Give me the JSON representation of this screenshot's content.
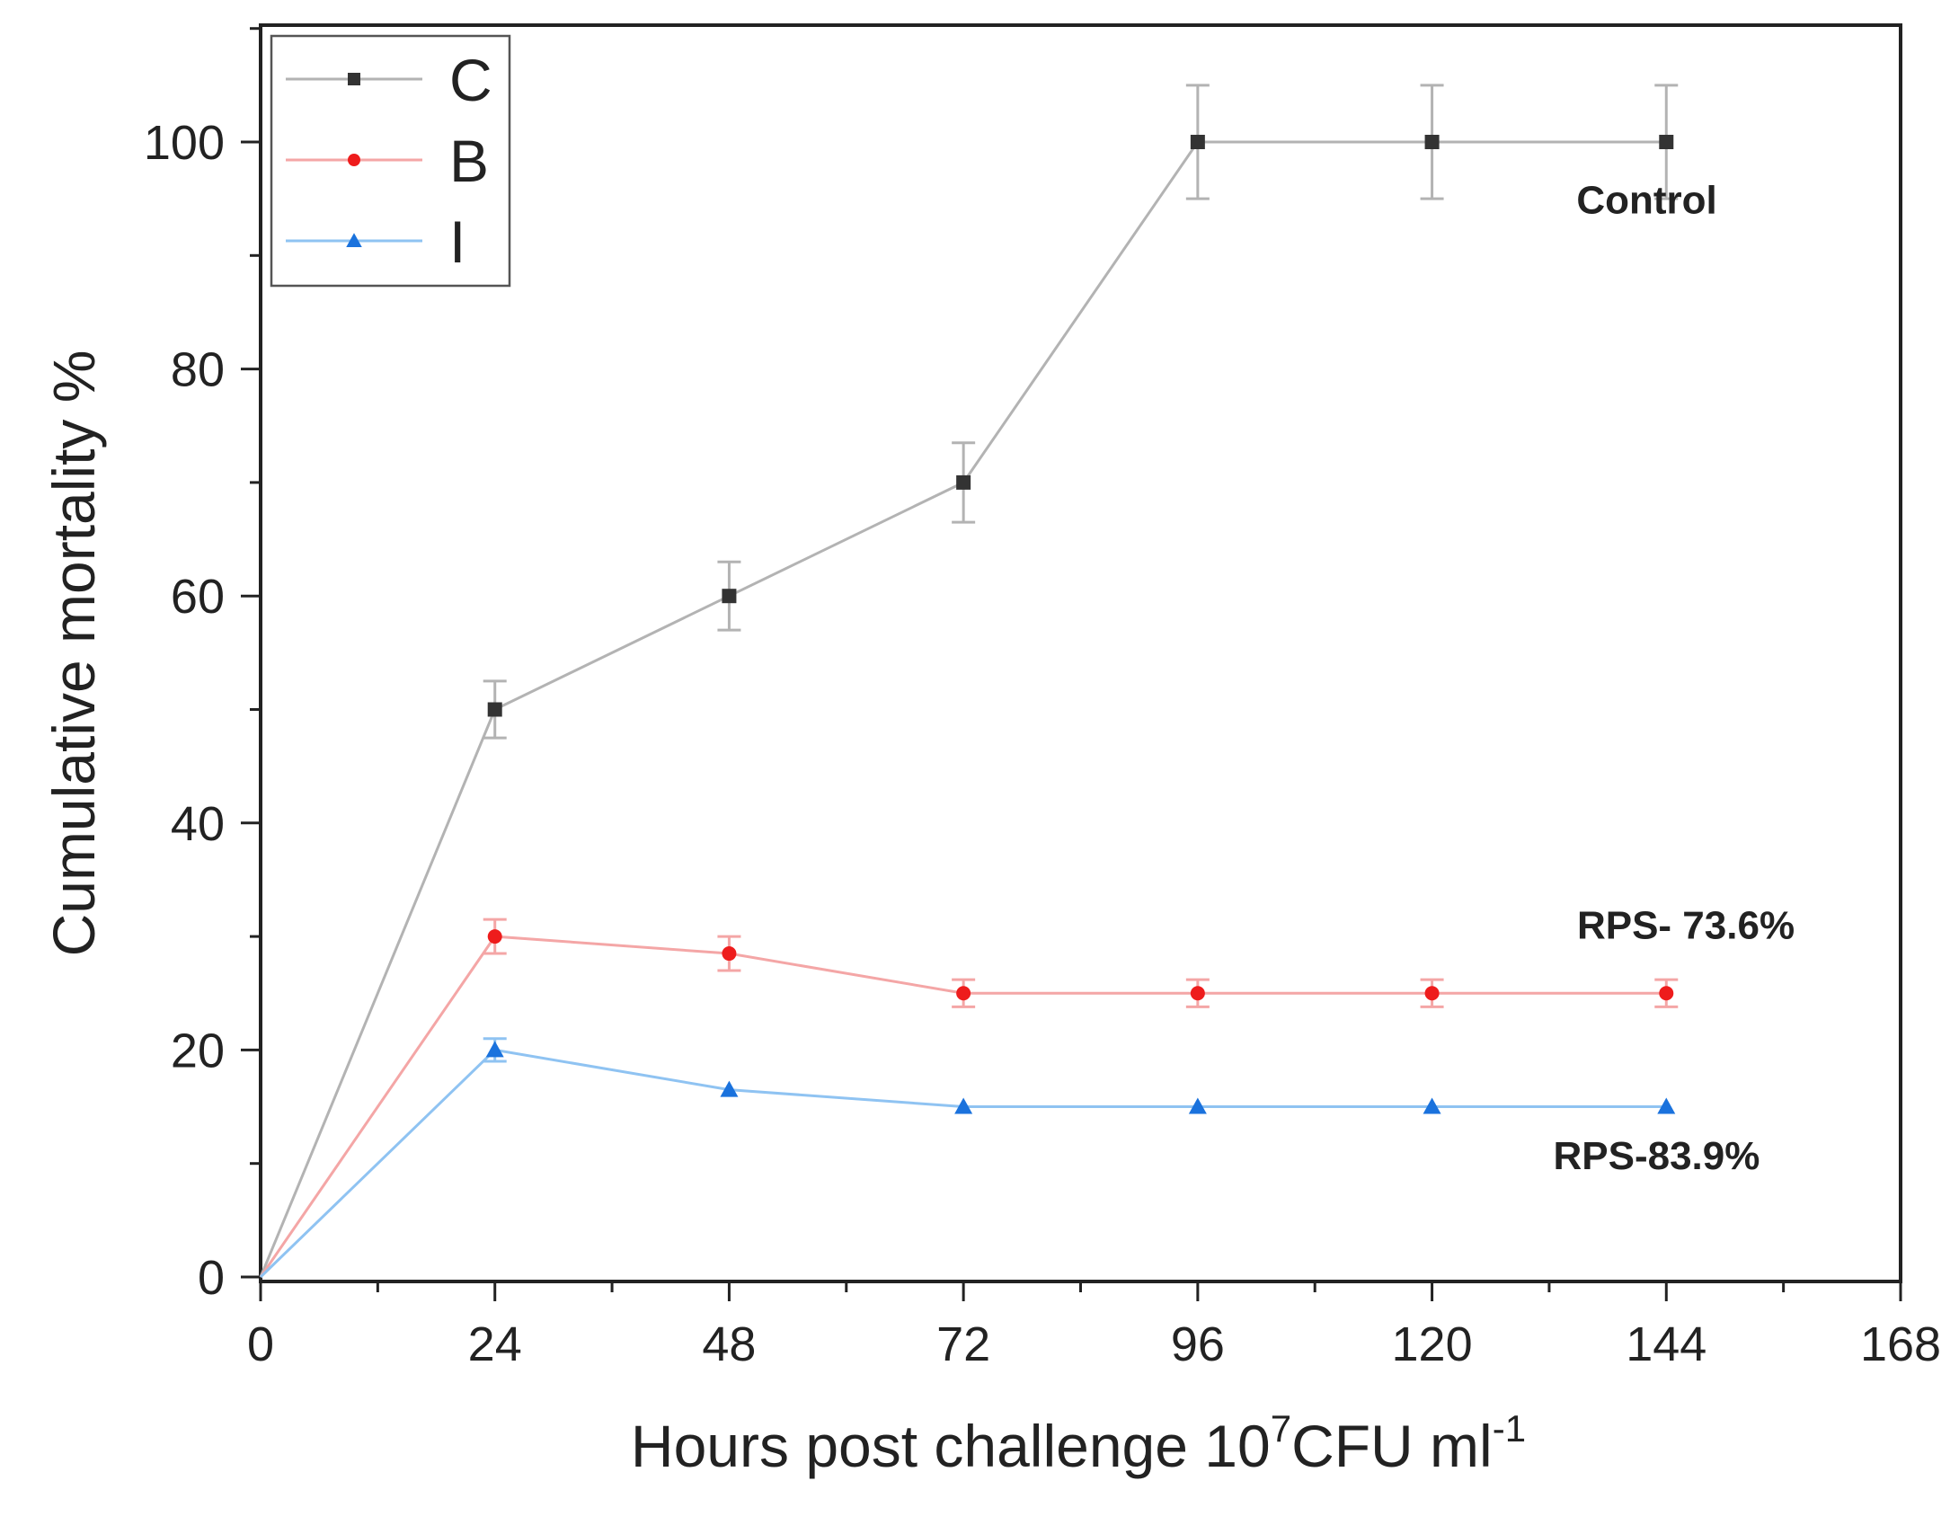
{
  "chart_data": {
    "type": "line",
    "xlabel": {
      "main": "Hours post challenge 10",
      "sup1": "7",
      "mid": "CFU ml",
      "sup2": "-1"
    },
    "ylabel": "Cumulative mortality %",
    "xlim": [
      0,
      168
    ],
    "ylim": [
      0,
      110
    ],
    "x_ticks": [
      0,
      24,
      48,
      72,
      96,
      120,
      144,
      168
    ],
    "y_ticks": [
      0,
      20,
      40,
      60,
      80,
      100
    ],
    "x_tick_labels": [
      "0",
      "24",
      "48",
      "72",
      "96",
      "120",
      "144",
      "168"
    ],
    "y_tick_labels": [
      "0",
      "20",
      "40",
      "60",
      "80",
      "100"
    ],
    "grid": false,
    "legend_position": "top-left",
    "series": [
      {
        "name": "C",
        "marker": "square",
        "color": "#b3b3b3",
        "marker_color": "#333333",
        "x": [
          0,
          24,
          48,
          72,
          96,
          120,
          144
        ],
        "y": [
          0,
          50,
          60,
          70,
          100,
          100,
          100
        ],
        "error": [
          0,
          2.5,
          3,
          3.5,
          5,
          5,
          5
        ]
      },
      {
        "name": "B",
        "marker": "circle",
        "color": "#f4a6a6",
        "marker_color": "#ee1c1c",
        "x": [
          0,
          24,
          48,
          72,
          96,
          120,
          144
        ],
        "y": [
          0,
          30,
          28.5,
          25,
          25,
          25,
          25
        ],
        "error": [
          0,
          1.5,
          1.5,
          1.2,
          1.2,
          1.2,
          1.2
        ]
      },
      {
        "name": "I",
        "marker": "triangle",
        "color": "#8fc3f2",
        "marker_color": "#1a72dd",
        "x": [
          0,
          24,
          48,
          72,
          96,
          120,
          144
        ],
        "y": [
          0,
          20,
          16.5,
          15,
          15,
          15,
          15
        ],
        "error": [
          0,
          1,
          0,
          0,
          0,
          0,
          0
        ]
      }
    ],
    "annotations": [
      {
        "text": "Control",
        "x": 142,
        "y": 93.7
      },
      {
        "text": "RPS- 73.6%",
        "x": 146,
        "y": 29.8
      },
      {
        "text": "RPS-83.9%",
        "x": 143,
        "y": 9.5
      }
    ]
  }
}
